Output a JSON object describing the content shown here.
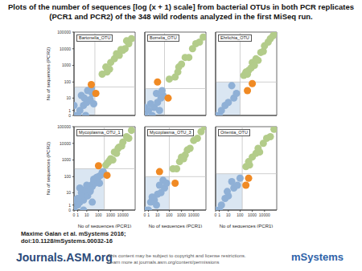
{
  "title": "Plots of the number of sequences [log (x + 1) scale] from bacterial OTUs in both PCR replicates (PCR1 and PCR2) of the 348 wild rodents analyzed in the first MiSeq run.",
  "chart_data": [
    {
      "type": "scatter",
      "title": "Bartonella_OTU",
      "ylabel": "No of sequences (PCR2)",
      "log": true,
      "tick_labels": "y",
      "xlim": [
        0,
        100000
      ],
      "ylim": [
        0,
        100000
      ],
      "xticks": [
        0,
        1,
        10,
        100,
        1000,
        10000
      ],
      "yticks": [
        0,
        1,
        10,
        100,
        1000,
        10000,
        100000
      ],
      "threshold": 50,
      "series": [
        {
          "color": "#8fb0d6",
          "x": [
            0,
            1,
            2,
            5,
            8,
            10,
            20,
            3,
            30,
            12,
            40,
            0,
            6,
            25
          ],
          "y": [
            0,
            0,
            1,
            3,
            0,
            5,
            8,
            15,
            20,
            30,
            4,
            3,
            10,
            40
          ]
        },
        {
          "color": "#b3cc8a",
          "x": [
            200,
            500,
            400,
            1000,
            2000,
            3000,
            5000,
            10000,
            15000,
            20000,
            30000,
            50000,
            800,
            7000
          ],
          "y": [
            300,
            400,
            800,
            1500,
            2500,
            5000,
            4000,
            8000,
            10000,
            30000,
            20000,
            40000,
            600,
            9000
          ]
        },
        {
          "color": "#f08a24",
          "x": [
            60,
            25
          ],
          "y": [
            20,
            70
          ]
        }
      ]
    },
    {
      "type": "scatter",
      "title": "Borrelia_OTU",
      "log": true,
      "tick_labels": false,
      "xlim": [
        0,
        100000
      ],
      "ylim": [
        0,
        100000
      ],
      "xticks": [
        0,
        1,
        10,
        100,
        1000,
        10000
      ],
      "yticks": [
        0,
        1,
        10,
        100,
        1000,
        10000,
        100000
      ],
      "threshold": 40,
      "series": [
        {
          "color": "#8fb0d6",
          "x": [
            0,
            1,
            3,
            5,
            10,
            20,
            2,
            15,
            30,
            8,
            0,
            25
          ],
          "y": [
            0,
            1,
            0,
            2,
            5,
            10,
            4,
            1,
            15,
            20,
            2,
            30
          ]
        },
        {
          "color": "#b3cc8a",
          "x": [
            100,
            300,
            600,
            1000,
            2000,
            4000,
            8000,
            15000,
            30000,
            60000,
            500
          ],
          "y": [
            150,
            200,
            800,
            1200,
            3000,
            3000,
            10000,
            20000,
            25000,
            50000,
            400
          ]
        },
        {
          "color": "#f08a24",
          "x": [
            80,
            10
          ],
          "y": [
            10,
            100
          ]
        }
      ]
    },
    {
      "type": "scatter",
      "title": "Ehrlichia_OTU",
      "log": true,
      "tick_labels": false,
      "xlim": [
        0,
        100000
      ],
      "ylim": [
        0,
        100000
      ],
      "xticks": [
        0,
        1,
        10,
        100,
        1000,
        10000
      ],
      "yticks": [
        0,
        1,
        10,
        100,
        1000,
        10000,
        100000
      ],
      "threshold": 100,
      "series": [
        {
          "color": "#8fb0d6",
          "x": [
            0,
            2,
            5,
            10,
            30,
            50,
            20,
            1
          ],
          "y": [
            0,
            1,
            3,
            5,
            10,
            20,
            60,
            0
          ]
        },
        {
          "color": "#b3cc8a",
          "x": [
            200,
            300,
            500,
            800,
            1000,
            2000,
            3000,
            5000,
            8000,
            10000,
            20000,
            30000,
            50000,
            80000,
            1500,
            400
          ],
          "y": [
            250,
            400,
            500,
            700,
            1500,
            2500,
            2000,
            6000,
            7000,
            15000,
            25000,
            40000,
            60000,
            90000,
            1000,
            300
          ]
        },
        {
          "color": "#f08a24",
          "x": [
            400,
            1000
          ],
          "y": [
            30,
            80
          ]
        }
      ]
    },
    {
      "type": "scatter",
      "title": "Mycoplasma_OTU_1",
      "xlabel": "No of sequences (PCR1)",
      "ylabel": "No of sequences (PCR2)",
      "log": true,
      "tick_labels": true,
      "xlim": [
        0,
        100000
      ],
      "ylim": [
        0,
        100000
      ],
      "xticks": [
        0,
        1,
        10,
        100,
        1000,
        10000
      ],
      "yticks": [
        0,
        1,
        10,
        100,
        1000,
        10000,
        100000
      ],
      "threshold": 300,
      "series": [
        {
          "color": "#8fb0d6",
          "x": [
            0,
            1,
            2,
            3,
            5,
            8,
            10,
            12,
            15,
            20,
            25,
            30,
            40,
            50,
            60,
            80,
            100,
            150,
            200,
            1,
            3,
            6,
            10,
            20,
            40,
            70,
            120,
            5,
            30,
            250,
            0,
            2
          ],
          "y": [
            0,
            1,
            2,
            5,
            3,
            8,
            10,
            6,
            20,
            15,
            30,
            25,
            50,
            40,
            80,
            60,
            100,
            120,
            180,
            4,
            10,
            15,
            30,
            12,
            70,
            90,
            40,
            0,
            2,
            200,
            3,
            20
          ]
        },
        {
          "color": "#b3cc8a",
          "x": [
            400,
            600,
            1000,
            1500,
            2000,
            3000,
            5000,
            8000,
            10000,
            20000,
            30000,
            50000,
            800,
            4000
          ],
          "y": [
            500,
            700,
            1200,
            1000,
            3000,
            2500,
            6000,
            7000,
            12000,
            25000,
            20000,
            60000,
            900,
            5000
          ]
        },
        {
          "color": "#f08a24",
          "x": [
            500,
            100
          ],
          "y": [
            120,
            450
          ]
        }
      ]
    },
    {
      "type": "scatter",
      "title": "Mycoplasma_OTU_3",
      "xlabel": "No of sequences (PCR1)",
      "log": true,
      "tick_labels": "x",
      "xlim": [
        0,
        100000
      ],
      "ylim": [
        0,
        100000
      ],
      "xticks": [
        0,
        1,
        10,
        100,
        1000,
        10000
      ],
      "yticks": [
        0,
        1,
        10,
        100,
        1000,
        10000,
        100000
      ],
      "threshold": 100,
      "series": [
        {
          "color": "#8fb0d6",
          "x": [
            0,
            1,
            2,
            5,
            10,
            20,
            40,
            3,
            8,
            60,
            30,
            15
          ],
          "y": [
            0,
            0,
            2,
            3,
            8,
            10,
            20,
            5,
            1,
            40,
            60,
            30
          ]
        },
        {
          "color": "#b3cc8a",
          "x": [
            200,
            400,
            700,
            1000,
            2000,
            3000,
            5000,
            10000,
            20000,
            40000,
            80000,
            1500
          ],
          "y": [
            300,
            300,
            800,
            1500,
            2000,
            4000,
            5000,
            15000,
            20000,
            50000,
            100000,
            1200
          ]
        },
        {
          "color": "#f08a24",
          "x": [
            15,
            300
          ],
          "y": [
            200,
            40
          ]
        }
      ]
    },
    {
      "type": "scatter",
      "title": "Orientia_OTU",
      "xlabel": "No of sequences (PCR1)",
      "log": true,
      "tick_labels": "x",
      "xlim": [
        0,
        100000
      ],
      "ylim": [
        0,
        100000
      ],
      "xticks": [
        0,
        1,
        10,
        100,
        1000,
        10000
      ],
      "yticks": [
        0,
        1,
        10,
        100,
        1000,
        10000,
        100000
      ],
      "threshold": 150,
      "series": [
        {
          "color": "#8fb0d6",
          "x": [
            0,
            2,
            5,
            10,
            30,
            60,
            100,
            20,
            1,
            8
          ],
          "y": [
            0,
            1,
            4,
            6,
            20,
            30,
            80,
            50,
            0,
            12
          ]
        },
        {
          "color": "#b3cc8a",
          "x": [
            300,
            600,
            1000,
            2000,
            4000,
            8000,
            15000,
            30000,
            60000,
            500,
            3000
          ],
          "y": [
            400,
            500,
            1500,
            2500,
            3000,
            10000,
            20000,
            25000,
            70000,
            800,
            5000
          ]
        },
        {
          "color": "#f08a24",
          "x": [
            300,
            500
          ],
          "y": [
            30,
            80
          ]
        }
      ]
    }
  ],
  "citation": [
    "Maxime Galan et al. mSystems 2016;",
    "doi:10.1128/mSystems.00032-16"
  ],
  "footer": {
    "site": "Journals.ASM.org",
    "notice": [
      "This content may be subject to copyright and license restrictions.",
      "Learn more at journals.asm.org/content/permissions"
    ],
    "logo": "mSystems"
  }
}
